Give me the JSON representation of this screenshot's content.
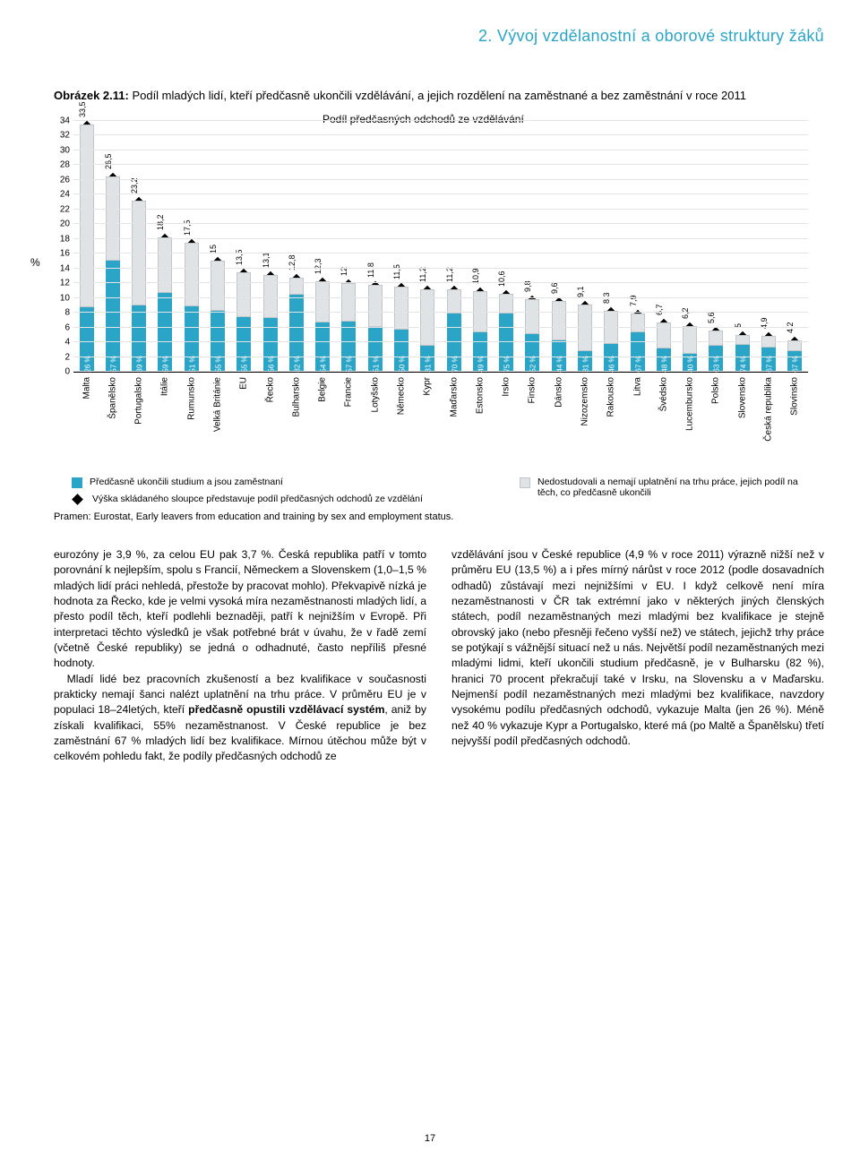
{
  "section_title": "2. Vývoj vzdělanostní a oborové struktury žáků",
  "figure": {
    "caption_bold": "Obrázek 2.11:",
    "caption_rest": " Podíl mladých lidí, kteří předčasně ukončili vzdělávání, a jejich rozdělení na zaměstnané a bez zaměstnání v roce 2011",
    "y_label": "%",
    "chart_title": "Podíl předčasných odchodů ze vzdělávání",
    "ymax": 34,
    "yticks": [
      0,
      2,
      4,
      6,
      8,
      10,
      12,
      14,
      16,
      18,
      20,
      22,
      24,
      26,
      28,
      30,
      32,
      34
    ],
    "data": [
      {
        "country": "Malta",
        "total": 33.5,
        "employed_pct": 26
      },
      {
        "country": "Španělsko",
        "total": 26.5,
        "employed_pct": 57
      },
      {
        "country": "Portugalsko",
        "total": 23.2,
        "employed_pct": 39
      },
      {
        "country": "Itálie",
        "total": 18.2,
        "employed_pct": 59
      },
      {
        "country": "Rumunsko",
        "total": 17.5,
        "employed_pct": 51
      },
      {
        "country": "Velká Británie",
        "total": 15.0,
        "employed_pct": 55
      },
      {
        "country": "EU",
        "total": 13.5,
        "employed_pct": 55
      },
      {
        "country": "Řecko",
        "total": 13.1,
        "employed_pct": 56
      },
      {
        "country": "Bulharsko",
        "total": 12.8,
        "employed_pct": 82
      },
      {
        "country": "Belgie",
        "total": 12.3,
        "employed_pct": 54
      },
      {
        "country": "Francie",
        "total": 12.0,
        "employed_pct": 57
      },
      {
        "country": "Lotyšsko",
        "total": 11.8,
        "employed_pct": 51
      },
      {
        "country": "Německo",
        "total": 11.5,
        "employed_pct": 50
      },
      {
        "country": "Kypr",
        "total": 11.2,
        "employed_pct": 31
      },
      {
        "country": "Maďarsko",
        "total": 11.2,
        "employed_pct": 70
      },
      {
        "country": "Estonsko",
        "total": 10.9,
        "employed_pct": 49
      },
      {
        "country": "Irsko",
        "total": 10.6,
        "employed_pct": 75
      },
      {
        "country": "Finsko",
        "total": 9.8,
        "employed_pct": 52
      },
      {
        "country": "Dánsko",
        "total": 9.6,
        "employed_pct": 44
      },
      {
        "country": "Nizozemsko",
        "total": 9.1,
        "employed_pct": 31
      },
      {
        "country": "Rakousko",
        "total": 8.3,
        "employed_pct": 46
      },
      {
        "country": "Litva",
        "total": 7.9,
        "employed_pct": 67
      },
      {
        "country": "Švédsko",
        "total": 6.7,
        "employed_pct": 48
      },
      {
        "country": "Lucembursko",
        "total": 6.2,
        "employed_pct": 40
      },
      {
        "country": "Polsko",
        "total": 5.6,
        "employed_pct": 63
      },
      {
        "country": "Slovensko",
        "total": 5.0,
        "employed_pct": 74
      },
      {
        "country": "Česká republika",
        "total": 4.9,
        "employed_pct": 67
      },
      {
        "country": "Slovinsko",
        "total": 4.2,
        "employed_pct": 67
      }
    ],
    "colors": {
      "employed": "#2aa5c7",
      "not_employed": "#dfe3e5",
      "not_employed_border": "#bfc5c9",
      "grid": "#e4e4e4",
      "marker": "#000000"
    }
  },
  "legend": {
    "employed": "Předčasně ukončili studium a jsou zaměstnaní",
    "not_employed": "Nedostudovali a nemají uplatnění na trhu práce, jejich podíl na těch, co předčasně ukončili",
    "marker": "Výška skládaného sloupce představuje podíl předčasných odchodů ze vzdělání"
  },
  "source": "Pramen: Eurostat, Early leavers from education and training by sex and employment status.",
  "body": {
    "left_p1": "eurozóny je 3,9 %, za celou EU pak 3,7 %. Česká republika patří v tomto porovnání k nejlepším, spolu s Francií, Německem a Slovenskem (1,0–1,5 % mladých lidí práci nehledá, přestože by pracovat mohlo). Překvapivě nízká je hodnota za Řecko, kde je velmi vysoká míra nezaměstnanosti mladých lidí, a přesto podíl těch, kteří podlehli beznaději, patří k nejnižším v Evropě. Při interpretaci těchto výsledků je však potřebné brát v úvahu, že v řadě zemí (včetně České republiky) se jedná o odhadnuté, často nepříliš přesné hodnoty.",
    "left_p2_a": "Mladí lidé bez pracovních zkušeností a bez kvalifikace v současnosti prakticky nemají šanci nalézt uplatnění na trhu práce. V průměru EU je v populaci 18–24letých, kteří ",
    "left_p2_b": "před­časně opustili vzdělávací systém",
    "left_p2_c": ", aniž by získali kvalifikaci, 55% nezaměstnanost. V České republice je bez zaměstnání 67 % mladých lidí bez kvalifikace. Mírnou útěchou může být v celkovém pohledu fakt, že podíly předčasných odchodů ze",
    "right_p1": "vzdělávání jsou v České republice (4,9 % v roce 2011) výrazně nižší než v průměru EU (13,5 %) a i přes mírný nárůst v roce 2012 (podle dosavadních odhadů) zůstávají mezi nejnižšími v EU. I když celkově není míra nezaměstnanosti v ČR tak extrémní jako v některých jiných členských státech, podíl nezaměstnaných mezi mladými bez kvalifikace je stejně obrovský jako (nebo přesněji řečeno vyšší než) ve státech, jejichž trhy práce se potýkají s vážnější situací než u nás. Největší podíl nezaměstnaných mezi mladými lidmi, kteří ukončili studium předčasně, je v Bulharsku (82 %), hranici 70 procent překračují také v Irsku, na Slovensku a v Maďarsku. Nejmenší podíl nezaměstnaných mezi mladými bez kvalifikace, navzdory vysokému podílu předčasných odchodů, vykazuje Malta (jen 26 %). Méně než 40 % vykazuje Kypr a Portugalsko, které má (po Maltě a Španělsku) třetí nejvyšší podíl předčasných odchodů."
  },
  "page_number": "17"
}
